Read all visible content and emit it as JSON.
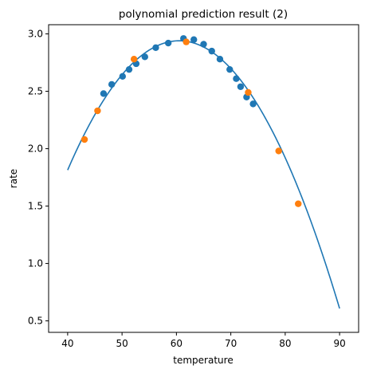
{
  "chart_data": {
    "type": "scatter",
    "title": "polynomial prediction result (2)",
    "xlabel": "temperature",
    "ylabel": "rate",
    "xlim": [
      36.5,
      93.5
    ],
    "ylim": [
      0.4,
      3.08
    ],
    "xticks": [
      40,
      50,
      60,
      70,
      80,
      90
    ],
    "yticks": [
      0.5,
      1.0,
      1.5,
      2.0,
      2.5,
      3.0
    ],
    "xtick_labels": [
      "40",
      "50",
      "60",
      "70",
      "80",
      "90"
    ],
    "ytick_labels": [
      "0.5",
      "1.0",
      "1.5",
      "2.0",
      "2.5",
      "3.0"
    ],
    "grid": false,
    "colors": {
      "fit_line": "#1f77b4",
      "series_1": "#1f77b4",
      "series_2": "#ff7f0e"
    },
    "fit_curve": {
      "type": "quadratic",
      "vertex_x": 60.5,
      "vertex_y": 2.94,
      "a": -0.00268
    },
    "series": [
      {
        "color": "#1f77b4",
        "points": [
          [
            46.6,
            2.48
          ],
          [
            48.1,
            2.56
          ],
          [
            50.1,
            2.63
          ],
          [
            51.3,
            2.69
          ],
          [
            52.6,
            2.74
          ],
          [
            54.2,
            2.8
          ],
          [
            56.2,
            2.88
          ],
          [
            58.5,
            2.92
          ],
          [
            61.3,
            2.96
          ],
          [
            63.2,
            2.95
          ],
          [
            65.0,
            2.91
          ],
          [
            66.5,
            2.85
          ],
          [
            68.0,
            2.78
          ],
          [
            69.8,
            2.69
          ],
          [
            71.0,
            2.61
          ],
          [
            71.8,
            2.54
          ],
          [
            72.9,
            2.45
          ],
          [
            74.1,
            2.39
          ]
        ]
      },
      {
        "color": "#ff7f0e",
        "points": [
          [
            43.1,
            2.08
          ],
          [
            45.5,
            2.33
          ],
          [
            52.2,
            2.78
          ],
          [
            61.8,
            2.93
          ],
          [
            73.2,
            2.49
          ],
          [
            78.8,
            1.98
          ],
          [
            82.4,
            1.52
          ]
        ]
      }
    ]
  }
}
